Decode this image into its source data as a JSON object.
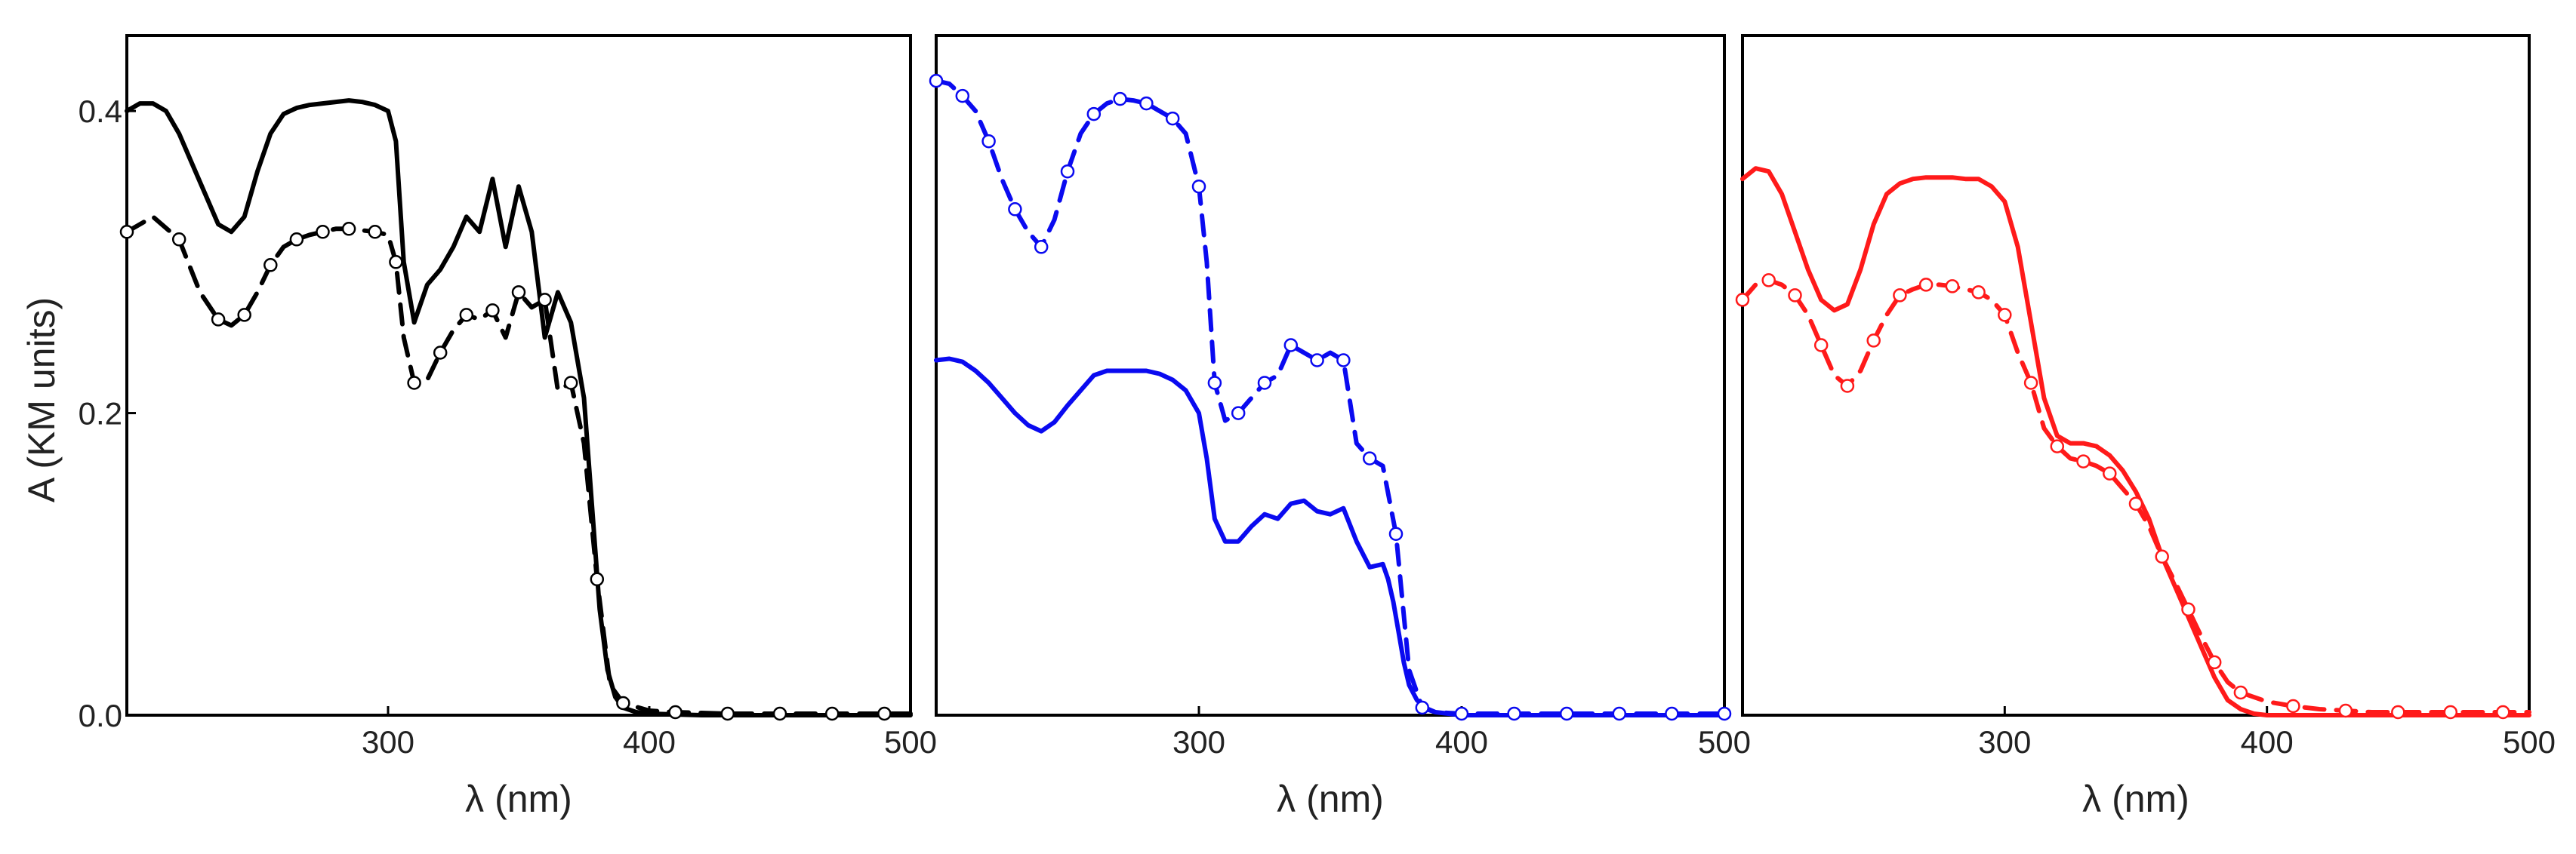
{
  "ylabel": "A (KM units)",
  "chart_data": [
    {
      "type": "line",
      "xlabel": "λ (nm)",
      "ylabel": "A (KM units)",
      "xlim": [
        200,
        500
      ],
      "ylim": [
        0,
        0.45
      ],
      "x_ticks": [
        "300",
        "400",
        "500"
      ],
      "y_ticks": [
        "0.0",
        "0.2",
        "0.4"
      ],
      "color": "#000000",
      "series": [
        {
          "style": "solid",
          "x": [
            200,
            205,
            210,
            215,
            220,
            225,
            230,
            235,
            240,
            245,
            250,
            255,
            260,
            265,
            270,
            275,
            280,
            285,
            290,
            295,
            300,
            303,
            306,
            310,
            315,
            320,
            325,
            330,
            335,
            340,
            345,
            350,
            355,
            360,
            365,
            370,
            375,
            378,
            381,
            384,
            387,
            390,
            395,
            400,
            420,
            450,
            500
          ],
          "y": [
            0.4,
            0.405,
            0.405,
            0.4,
            0.385,
            0.365,
            0.345,
            0.325,
            0.32,
            0.33,
            0.36,
            0.385,
            0.398,
            0.402,
            0.404,
            0.405,
            0.406,
            0.407,
            0.406,
            0.404,
            0.4,
            0.38,
            0.3,
            0.26,
            0.285,
            0.295,
            0.31,
            0.33,
            0.32,
            0.355,
            0.31,
            0.35,
            0.32,
            0.25,
            0.28,
            0.26,
            0.21,
            0.14,
            0.07,
            0.03,
            0.012,
            0.005,
            0.002,
            0.001,
            0.0,
            0.0,
            0.0
          ]
        },
        {
          "style": "dashed-circles",
          "x": [
            200,
            210,
            220,
            228,
            235,
            240,
            245,
            250,
            255,
            260,
            265,
            270,
            275,
            280,
            285,
            290,
            295,
            300,
            303,
            306,
            310,
            315,
            320,
            325,
            330,
            335,
            340,
            345,
            350,
            355,
            360,
            365,
            370,
            375,
            380,
            385,
            390,
            400,
            410,
            420,
            430,
            440,
            450,
            460,
            470,
            480,
            490,
            500
          ],
          "y": [
            0.32,
            0.33,
            0.315,
            0.28,
            0.262,
            0.258,
            0.265,
            0.28,
            0.298,
            0.31,
            0.315,
            0.318,
            0.32,
            0.322,
            0.322,
            0.321,
            0.32,
            0.318,
            0.3,
            0.25,
            0.22,
            0.222,
            0.24,
            0.255,
            0.265,
            0.262,
            0.268,
            0.25,
            0.28,
            0.27,
            0.275,
            0.215,
            0.22,
            0.18,
            0.09,
            0.02,
            0.008,
            0.003,
            0.002,
            0.0015,
            0.001,
            0.001,
            0.001,
            0.001,
            0.001,
            0.001,
            0.001,
            0.001
          ]
        }
      ]
    },
    {
      "type": "line",
      "xlabel": "λ (nm)",
      "xlim": [
        200,
        500
      ],
      "ylim": [
        0,
        0.45
      ],
      "x_ticks": [
        "300",
        "400",
        "500"
      ],
      "color": "#0a0af0",
      "series": [
        {
          "style": "solid",
          "x": [
            200,
            205,
            210,
            215,
            220,
            225,
            230,
            235,
            240,
            245,
            250,
            255,
            260,
            265,
            270,
            275,
            280,
            285,
            290,
            295,
            300,
            303,
            306,
            310,
            315,
            320,
            325,
            330,
            335,
            340,
            345,
            350,
            355,
            360,
            365,
            370,
            372,
            374,
            376,
            378,
            380,
            383,
            386,
            390,
            400,
            450,
            500
          ],
          "y": [
            0.235,
            0.236,
            0.234,
            0.228,
            0.22,
            0.21,
            0.2,
            0.192,
            0.188,
            0.194,
            0.205,
            0.215,
            0.225,
            0.228,
            0.228,
            0.228,
            0.228,
            0.226,
            0.222,
            0.215,
            0.2,
            0.17,
            0.13,
            0.115,
            0.115,
            0.125,
            0.133,
            0.13,
            0.14,
            0.142,
            0.135,
            0.133,
            0.137,
            0.115,
            0.098,
            0.1,
            0.09,
            0.075,
            0.055,
            0.035,
            0.02,
            0.01,
            0.005,
            0.002,
            0.0,
            0.0,
            0.0
          ]
        },
        {
          "style": "dashed-circles",
          "x": [
            200,
            205,
            210,
            215,
            220,
            225,
            230,
            235,
            240,
            245,
            250,
            255,
            260,
            265,
            270,
            275,
            280,
            285,
            290,
            295,
            300,
            303,
            306,
            310,
            315,
            320,
            325,
            330,
            335,
            340,
            345,
            350,
            355,
            360,
            365,
            370,
            375,
            380,
            385,
            390,
            400,
            410,
            420,
            430,
            440,
            450,
            460,
            470,
            480,
            490,
            500
          ],
          "y": [
            0.42,
            0.418,
            0.41,
            0.4,
            0.38,
            0.355,
            0.335,
            0.32,
            0.31,
            0.328,
            0.36,
            0.385,
            0.398,
            0.405,
            0.408,
            0.407,
            0.405,
            0.4,
            0.395,
            0.385,
            0.35,
            0.3,
            0.22,
            0.195,
            0.2,
            0.21,
            0.22,
            0.225,
            0.245,
            0.24,
            0.235,
            0.24,
            0.235,
            0.18,
            0.17,
            0.165,
            0.12,
            0.03,
            0.005,
            0.002,
            0.001,
            0.001,
            0.001,
            0.001,
            0.001,
            0.001,
            0.001,
            0.001,
            0.001,
            0.001,
            0.001
          ]
        }
      ]
    },
    {
      "type": "line",
      "xlabel": "λ (nm)",
      "xlim": [
        200,
        500
      ],
      "ylim": [
        0,
        0.45
      ],
      "x_ticks": [
        "300",
        "400",
        "500"
      ],
      "color": "#ff1a1a",
      "series": [
        {
          "style": "solid",
          "x": [
            200,
            205,
            210,
            215,
            220,
            225,
            230,
            235,
            240,
            245,
            250,
            255,
            260,
            265,
            270,
            275,
            280,
            285,
            290,
            295,
            300,
            305,
            310,
            315,
            320,
            325,
            330,
            335,
            340,
            345,
            350,
            355,
            360,
            365,
            370,
            375,
            380,
            385,
            390,
            395,
            400,
            450,
            500
          ],
          "y": [
            0.355,
            0.362,
            0.36,
            0.345,
            0.32,
            0.295,
            0.275,
            0.268,
            0.272,
            0.295,
            0.325,
            0.345,
            0.352,
            0.355,
            0.356,
            0.356,
            0.356,
            0.355,
            0.355,
            0.35,
            0.34,
            0.31,
            0.26,
            0.21,
            0.185,
            0.18,
            0.18,
            0.178,
            0.172,
            0.162,
            0.148,
            0.13,
            0.105,
            0.085,
            0.065,
            0.045,
            0.025,
            0.01,
            0.004,
            0.001,
            0.0,
            0.0,
            0.0
          ]
        },
        {
          "style": "dashed-circles",
          "x": [
            200,
            205,
            210,
            215,
            220,
            225,
            230,
            235,
            240,
            245,
            250,
            255,
            260,
            265,
            270,
            275,
            280,
            285,
            290,
            295,
            300,
            305,
            310,
            315,
            320,
            325,
            330,
            335,
            340,
            345,
            350,
            355,
            360,
            365,
            370,
            375,
            380,
            385,
            390,
            400,
            410,
            420,
            430,
            440,
            450,
            460,
            470,
            480,
            490,
            500
          ],
          "y": [
            0.275,
            0.285,
            0.288,
            0.285,
            0.278,
            0.265,
            0.245,
            0.225,
            0.218,
            0.228,
            0.248,
            0.265,
            0.278,
            0.282,
            0.285,
            0.285,
            0.284,
            0.282,
            0.28,
            0.275,
            0.265,
            0.24,
            0.22,
            0.19,
            0.178,
            0.17,
            0.168,
            0.165,
            0.16,
            0.15,
            0.14,
            0.125,
            0.105,
            0.088,
            0.07,
            0.052,
            0.035,
            0.022,
            0.015,
            0.009,
            0.006,
            0.004,
            0.003,
            0.002,
            0.002,
            0.002,
            0.002,
            0.002,
            0.002,
            0.002
          ]
        }
      ]
    }
  ]
}
